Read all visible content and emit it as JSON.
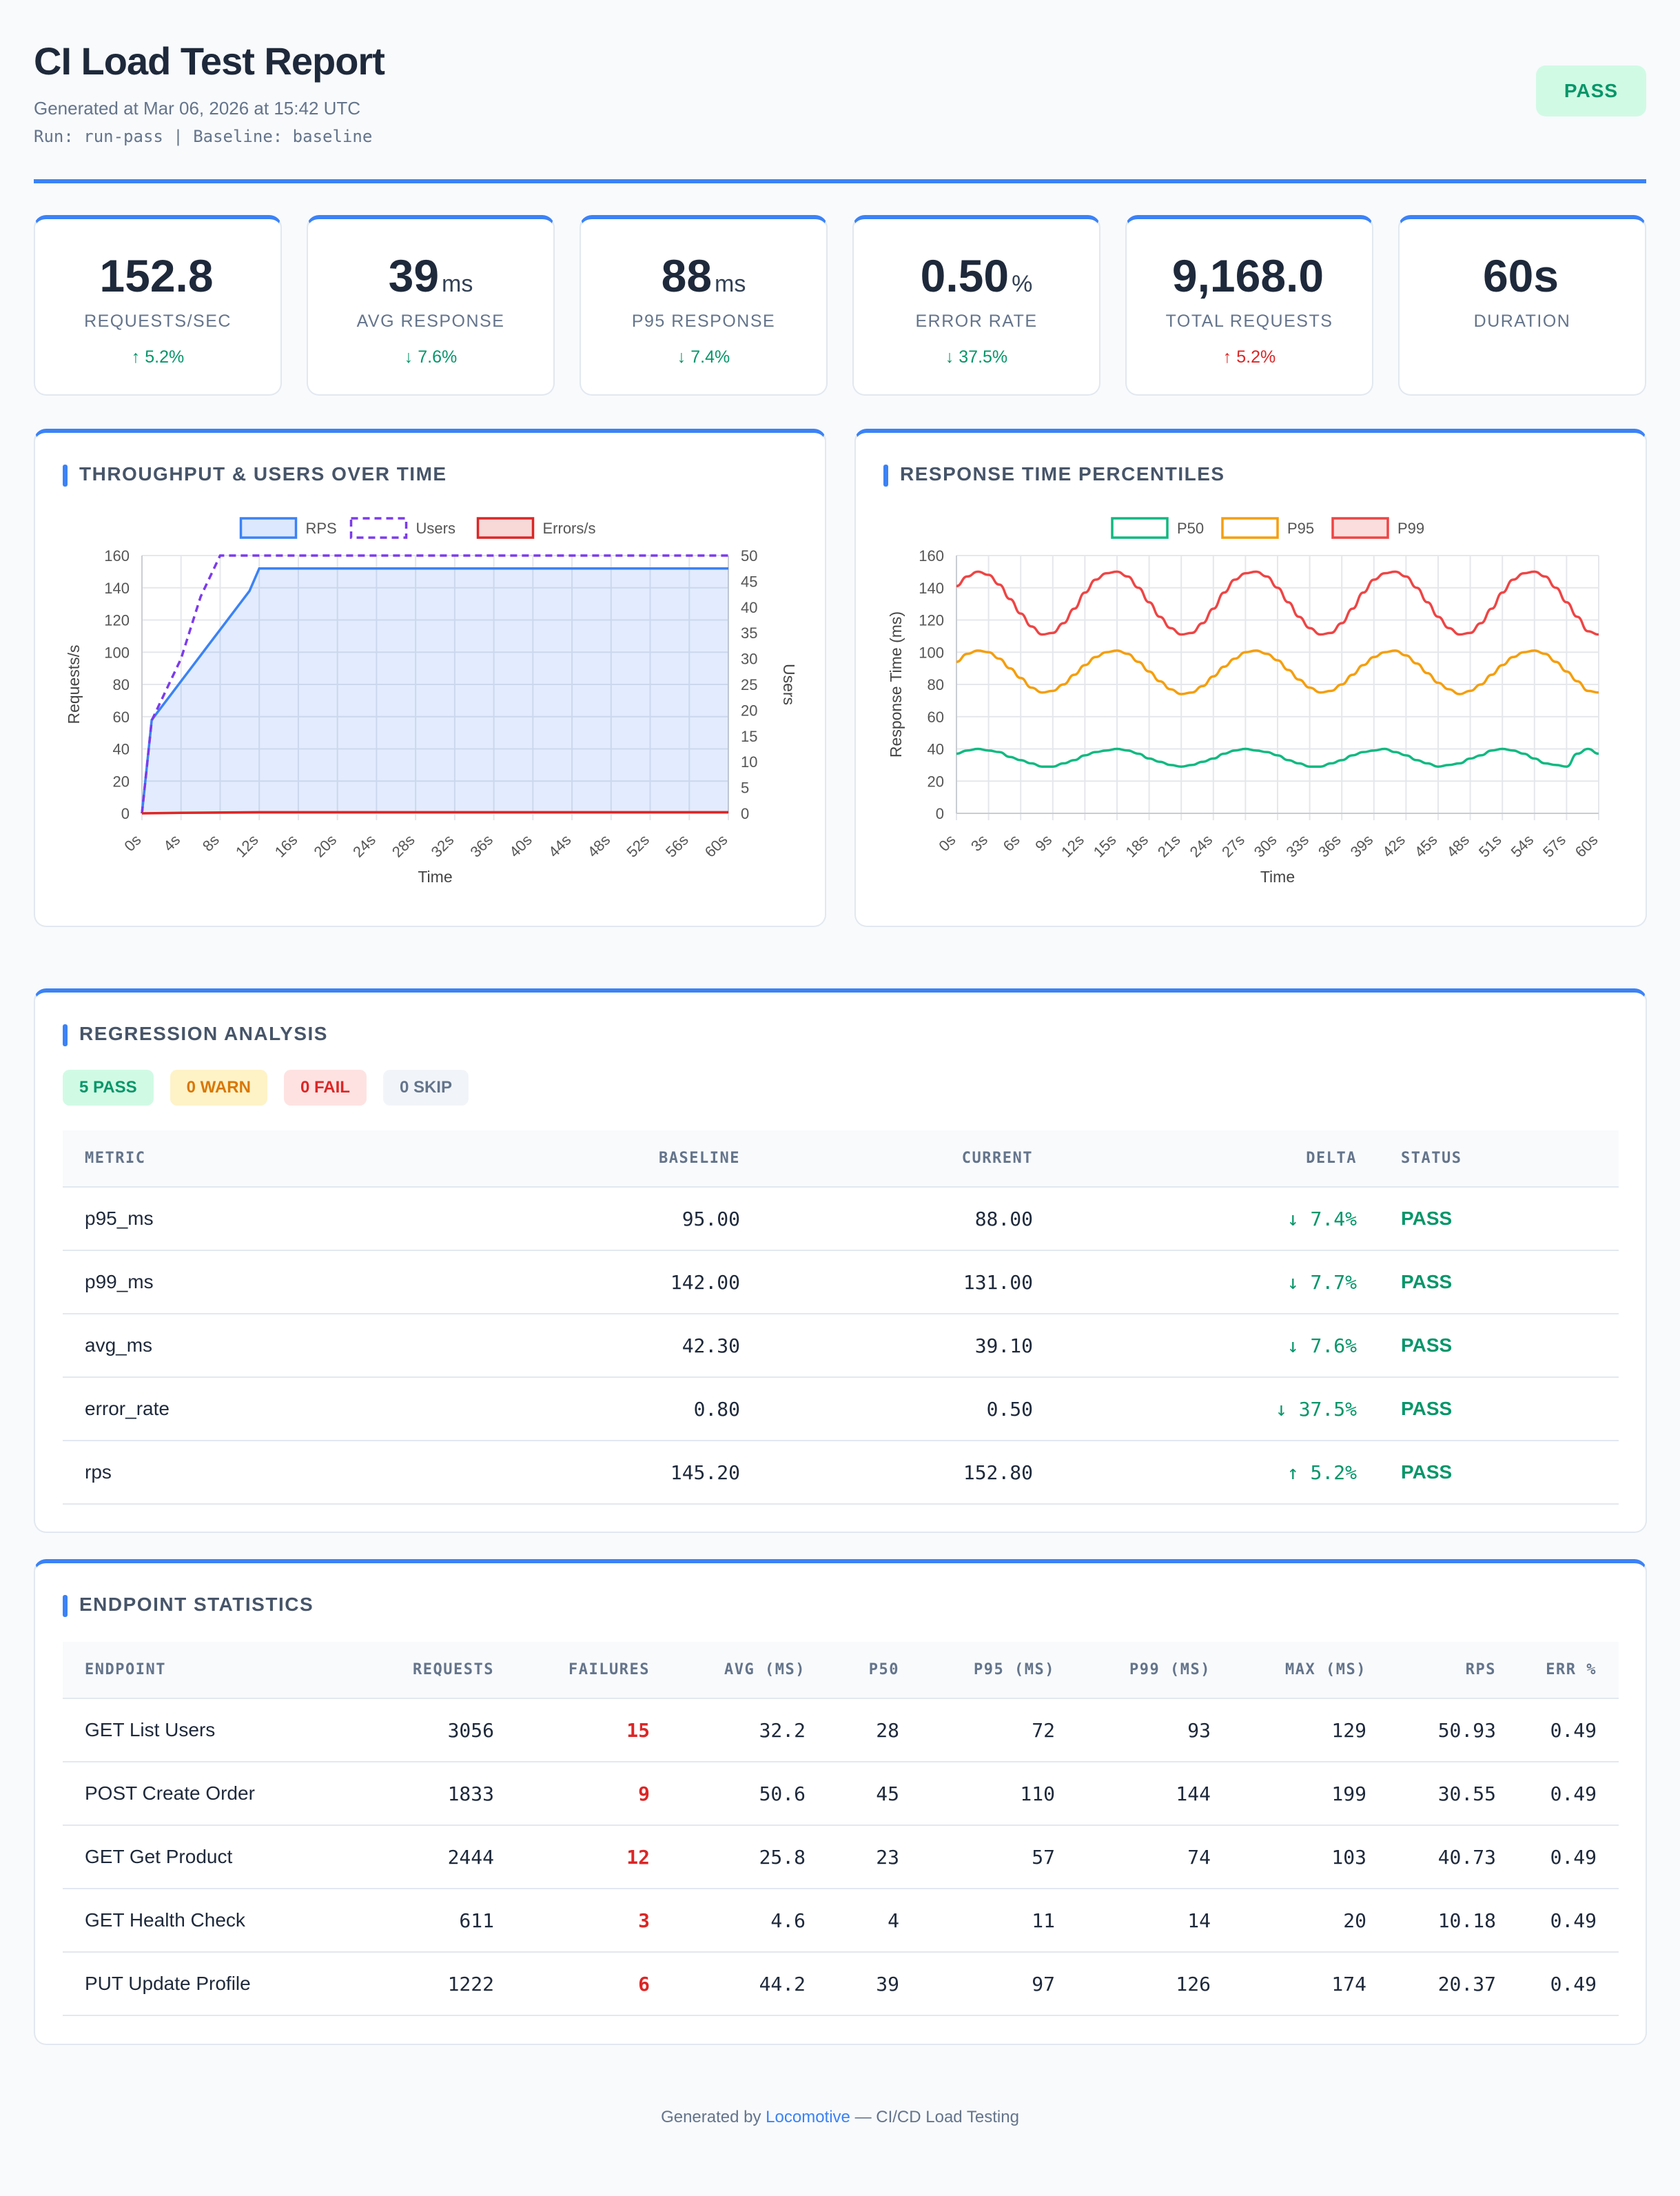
{
  "header": {
    "title": "CI Load Test Report",
    "generated": "Generated at Mar 06, 2026 at 15:42 UTC",
    "run_line": "Run: run-pass | Baseline: baseline",
    "status": "PASS"
  },
  "cards": [
    {
      "value": "152.8",
      "unit": "",
      "label": "REQUESTS/SEC",
      "delta": "↑ 5.2%",
      "tone": "good"
    },
    {
      "value": "39",
      "unit": "ms",
      "label": "AVG RESPONSE",
      "delta": "↓ 7.6%",
      "tone": "good"
    },
    {
      "value": "88",
      "unit": "ms",
      "label": "P95 RESPONSE",
      "delta": "↓ 7.4%",
      "tone": "good"
    },
    {
      "value": "0.50",
      "unit": "%",
      "label": "ERROR RATE",
      "delta": "↓ 37.5%",
      "tone": "good"
    },
    {
      "value": "9,168.0",
      "unit": "",
      "label": "TOTAL REQUESTS",
      "delta": "↑ 5.2%",
      "tone": "bad"
    },
    {
      "value": "60s",
      "unit": "",
      "label": "DURATION",
      "delta": "",
      "tone": "good"
    }
  ],
  "throughput_panel": {
    "title": "THROUGHPUT & USERS OVER TIME"
  },
  "percentile_panel": {
    "title": "RESPONSE TIME PERCENTILES"
  },
  "colors": {
    "accent": "#3b82f6",
    "rps": "#3b82f6",
    "users": "#7c3aed",
    "errors": "#dc2626",
    "p50": "#10b981",
    "p95": "#f59e0b",
    "p99": "#ef4444",
    "pass": "#059669",
    "fail": "#dc2626"
  },
  "chart_data": [
    {
      "type": "line",
      "title": "",
      "xlabel": "Time",
      "ylabel": "Requests/s",
      "y2label": "Users",
      "ylim": [
        0,
        160
      ],
      "y2lim": [
        0,
        50
      ],
      "yticks": [
        "0",
        "20",
        "40",
        "60",
        "80",
        "100",
        "120",
        "140",
        "160"
      ],
      "y2ticks": [
        "0",
        "5",
        "10",
        "15",
        "20",
        "25",
        "30",
        "35",
        "40",
        "45",
        "50"
      ],
      "xticks": [
        "0s",
        "4s",
        "8s",
        "12s",
        "16s",
        "20s",
        "24s",
        "28s",
        "32s",
        "36s",
        "40s",
        "44s",
        "48s",
        "52s",
        "56s",
        "60s"
      ],
      "legend_position": "top",
      "grid": true,
      "series": [
        {
          "name": "RPS",
          "axis": "left",
          "fill": true,
          "x": [
            0,
            1,
            2,
            3,
            4,
            5,
            6,
            7,
            8,
            9,
            10,
            11,
            12,
            60
          ],
          "y": [
            0,
            58,
            66,
            74,
            82,
            90,
            98,
            106,
            114,
            122,
            130,
            138,
            152,
            152
          ]
        },
        {
          "name": "Users",
          "axis": "right",
          "dashed": true,
          "x": [
            0,
            1,
            2,
            3,
            4,
            5,
            6,
            7,
            8,
            9,
            10,
            60
          ],
          "y": [
            0,
            18,
            22,
            26,
            30,
            36,
            42,
            46,
            50,
            50,
            50,
            50
          ]
        },
        {
          "name": "Errors/s",
          "axis": "left",
          "x": [
            0,
            4,
            12,
            60
          ],
          "y": [
            0,
            0.3,
            0.7,
            0.7
          ]
        }
      ]
    },
    {
      "type": "line",
      "title": "",
      "xlabel": "Time",
      "ylabel": "Response Time (ms)",
      "ylim": [
        0,
        160
      ],
      "yticks": [
        "0",
        "20",
        "40",
        "60",
        "80",
        "100",
        "120",
        "140",
        "160"
      ],
      "xticks": [
        "0s",
        "3s",
        "6s",
        "9s",
        "12s",
        "15s",
        "18s",
        "21s",
        "24s",
        "27s",
        "30s",
        "33s",
        "36s",
        "39s",
        "42s",
        "45s",
        "48s",
        "51s",
        "54s",
        "57s",
        "60s"
      ],
      "legend_position": "top",
      "grid": true,
      "series": [
        {
          "name": "P50",
          "x": [
            0,
            1,
            2,
            3,
            4,
            5,
            6,
            7,
            8,
            9,
            10,
            11,
            12,
            13,
            14,
            15,
            16,
            17,
            18,
            19,
            20,
            21,
            22,
            23,
            24,
            25,
            26,
            27,
            28,
            29,
            30,
            31,
            32,
            33,
            34,
            35,
            36,
            37,
            38,
            39,
            40,
            41,
            42,
            43,
            44,
            45,
            46,
            47,
            48,
            49,
            50,
            51,
            52,
            53,
            54,
            55,
            56,
            57,
            58,
            59,
            60
          ],
          "y": [
            37,
            39,
            40,
            39,
            38,
            35,
            33,
            31,
            29,
            29,
            31,
            33,
            36,
            38,
            39,
            40,
            39,
            37,
            34,
            32,
            30,
            29,
            30,
            32,
            34,
            37,
            39,
            40,
            39,
            38,
            36,
            33,
            31,
            29,
            29,
            31,
            33,
            36,
            38,
            39,
            40,
            38,
            36,
            33,
            31,
            29,
            30,
            31,
            34,
            36,
            39,
            40,
            39,
            37,
            34,
            31,
            30,
            29,
            37,
            40,
            37
          ]
        },
        {
          "name": "P95",
          "x": [
            0,
            1,
            2,
            3,
            4,
            5,
            6,
            7,
            8,
            9,
            10,
            11,
            12,
            13,
            14,
            15,
            16,
            17,
            18,
            19,
            20,
            21,
            22,
            23,
            24,
            25,
            26,
            27,
            28,
            29,
            30,
            31,
            32,
            33,
            34,
            35,
            36,
            37,
            38,
            39,
            40,
            41,
            42,
            43,
            44,
            45,
            46,
            47,
            48,
            49,
            50,
            51,
            52,
            53,
            54,
            55,
            56,
            57,
            58,
            59,
            60
          ],
          "y": [
            94,
            99,
            101,
            100,
            96,
            90,
            84,
            78,
            75,
            76,
            80,
            86,
            92,
            97,
            100,
            101,
            99,
            94,
            88,
            82,
            77,
            74,
            75,
            79,
            85,
            91,
            96,
            100,
            101,
            99,
            95,
            89,
            83,
            78,
            75,
            76,
            80,
            86,
            92,
            97,
            100,
            101,
            98,
            93,
            87,
            81,
            77,
            74,
            76,
            80,
            86,
            92,
            97,
            100,
            101,
            99,
            94,
            88,
            82,
            76,
            75
          ]
        },
        {
          "name": "P99",
          "x": [
            0,
            1,
            2,
            3,
            4,
            5,
            6,
            7,
            8,
            9,
            10,
            11,
            12,
            13,
            14,
            15,
            16,
            17,
            18,
            19,
            20,
            21,
            22,
            23,
            24,
            25,
            26,
            27,
            28,
            29,
            30,
            31,
            32,
            33,
            34,
            35,
            36,
            37,
            38,
            39,
            40,
            41,
            42,
            43,
            44,
            45,
            46,
            47,
            48,
            49,
            50,
            51,
            52,
            53,
            54,
            55,
            56,
            57,
            58,
            59,
            60
          ],
          "y": [
            141,
            147,
            150,
            148,
            142,
            133,
            124,
            116,
            111,
            112,
            118,
            127,
            137,
            145,
            149,
            150,
            147,
            140,
            131,
            122,
            115,
            111,
            112,
            118,
            127,
            137,
            145,
            149,
            150,
            147,
            140,
            131,
            122,
            115,
            111,
            112,
            118,
            127,
            137,
            145,
            149,
            150,
            147,
            140,
            131,
            122,
            115,
            111,
            112,
            118,
            127,
            137,
            145,
            149,
            150,
            147,
            140,
            131,
            122,
            113,
            111
          ]
        }
      ]
    }
  ],
  "regression": {
    "title": "REGRESSION ANALYSIS",
    "pills": {
      "pass": "5 PASS",
      "warn": "0 WARN",
      "fail": "0 FAIL",
      "skip": "0 SKIP"
    },
    "columns": [
      "METRIC",
      "BASELINE",
      "CURRENT",
      "DELTA",
      "STATUS"
    ],
    "rows": [
      {
        "metric": "p95_ms",
        "baseline": "95.00",
        "current": "88.00",
        "delta": "↓ 7.4%",
        "status": "PASS"
      },
      {
        "metric": "p99_ms",
        "baseline": "142.00",
        "current": "131.00",
        "delta": "↓ 7.7%",
        "status": "PASS"
      },
      {
        "metric": "avg_ms",
        "baseline": "42.30",
        "current": "39.10",
        "delta": "↓ 7.6%",
        "status": "PASS"
      },
      {
        "metric": "error_rate",
        "baseline": "0.80",
        "current": "0.50",
        "delta": "↓ 37.5%",
        "status": "PASS"
      },
      {
        "metric": "rps",
        "baseline": "145.20",
        "current": "152.80",
        "delta": "↑ 5.2%",
        "status": "PASS"
      }
    ]
  },
  "endpoints": {
    "title": "ENDPOINT STATISTICS",
    "columns": [
      "ENDPOINT",
      "REQUESTS",
      "FAILURES",
      "AVG (MS)",
      "P50",
      "P95 (MS)",
      "P99 (MS)",
      "MAX (MS)",
      "RPS",
      "ERR %"
    ],
    "rows": [
      {
        "name": "GET List Users",
        "requests": "3056",
        "failures": "15",
        "avg": "32.2",
        "p50": "28",
        "p95": "72",
        "p99": "93",
        "max": "129",
        "rps": "50.93",
        "err": "0.49"
      },
      {
        "name": "POST Create Order",
        "requests": "1833",
        "failures": "9",
        "avg": "50.6",
        "p50": "45",
        "p95": "110",
        "p99": "144",
        "max": "199",
        "rps": "30.55",
        "err": "0.49"
      },
      {
        "name": "GET Get Product",
        "requests": "2444",
        "failures": "12",
        "avg": "25.8",
        "p50": "23",
        "p95": "57",
        "p99": "74",
        "max": "103",
        "rps": "40.73",
        "err": "0.49"
      },
      {
        "name": "GET Health Check",
        "requests": "611",
        "failures": "3",
        "avg": "4.6",
        "p50": "4",
        "p95": "11",
        "p99": "14",
        "max": "20",
        "rps": "10.18",
        "err": "0.49"
      },
      {
        "name": "PUT Update Profile",
        "requests": "1222",
        "failures": "6",
        "avg": "44.2",
        "p50": "39",
        "p95": "97",
        "p99": "126",
        "max": "174",
        "rps": "20.37",
        "err": "0.49"
      }
    ]
  },
  "footer": {
    "prefix": "Generated by ",
    "link": "Locomotive",
    "suffix": " — CI/CD Load Testing"
  }
}
